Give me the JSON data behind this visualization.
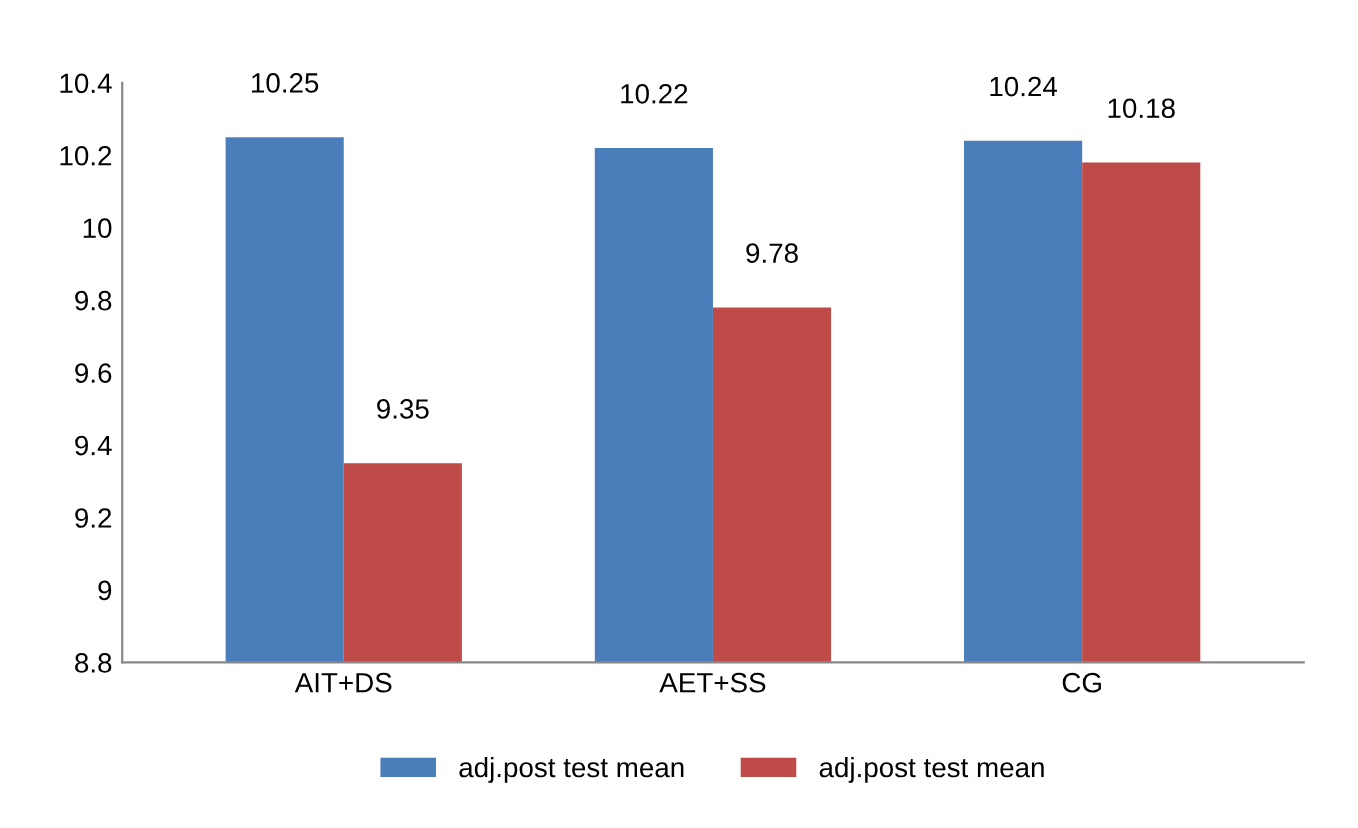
{
  "chart_data": {
    "type": "bar",
    "categories": [
      "AIT+DS",
      "AET+SS",
      "CG"
    ],
    "series": [
      {
        "name": "adj.post test mean",
        "color": "#4a7ebb",
        "values": [
          10.25,
          10.22,
          10.24
        ]
      },
      {
        "name": "adj.post test mean",
        "color": "#be4b48",
        "values": [
          9.35,
          9.78,
          10.18
        ]
      }
    ],
    "ylim": [
      8.8,
      10.4
    ],
    "yticks": [
      8.8,
      9,
      9.2,
      9.4,
      9.6,
      9.8,
      10,
      10.2,
      10.4
    ],
    "data_labels": true,
    "legend": "bottom",
    "grid": false
  }
}
